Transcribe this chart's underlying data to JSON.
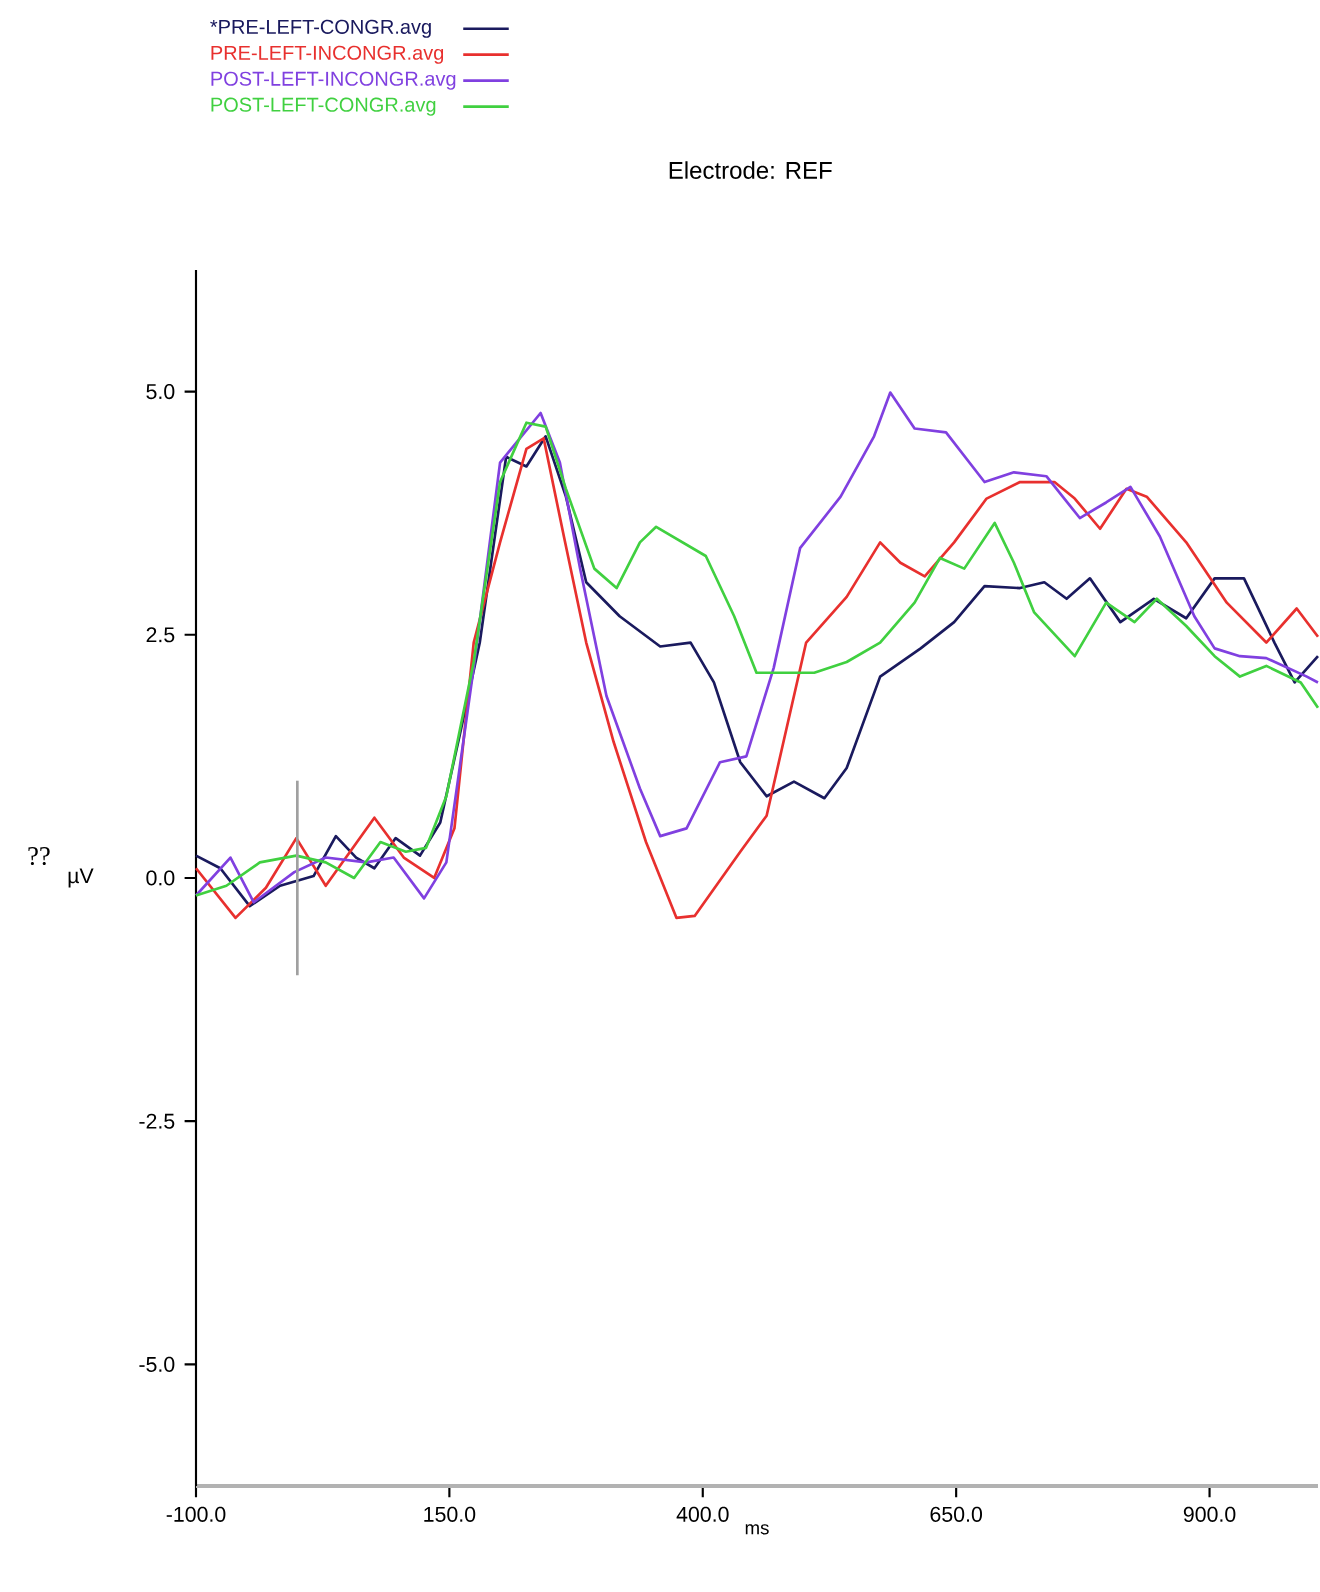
{
  "chart_data": {
    "type": "line",
    "title": "Electrode: REF",
    "xlabel": "ms",
    "ylabel": "µV",
    "annotations": [
      "??"
    ],
    "xlim": [
      -100,
      1007
    ],
    "ylim": [
      -6.25,
      6.25
    ],
    "xticks": [
      {
        "value": -100,
        "label": "-100.0"
      },
      {
        "value": 150,
        "label": "150.0"
      },
      {
        "value": 400,
        "label": "400.0"
      },
      {
        "value": 650,
        "label": "650.0"
      },
      {
        "value": 900,
        "label": "900.0"
      }
    ],
    "yticks": [
      {
        "value": 5,
        "label": "5.0"
      },
      {
        "value": 2.5,
        "label": "2.5"
      },
      {
        "value": 0,
        "label": "0.0"
      },
      {
        "value": -2.5,
        "label": "-2.5"
      },
      {
        "value": -5,
        "label": "-5.0"
      }
    ],
    "legend": "top left",
    "marker": "none",
    "line_style": "solid",
    "series": [
      {
        "name": "*PRE-LEFT-CONGR.avg",
        "color": "#1a1a5e",
        "x": [
          -100,
          -76,
          -47,
          -17,
          16,
          38,
          58,
          76,
          97,
          121,
          141,
          160,
          180,
          206,
          226,
          245,
          265,
          285,
          318,
          358,
          388,
          411,
          437,
          463,
          490,
          520,
          542,
          575,
          615,
          648,
          678,
          713,
          737,
          759,
          782,
          812,
          845,
          877,
          905,
          934,
          964,
          984,
          1007
        ],
        "values": [
          0.23,
          0.1,
          -0.29,
          -0.08,
          0.02,
          0.43,
          0.21,
          0.1,
          0.41,
          0.23,
          0.57,
          1.46,
          2.42,
          4.33,
          4.23,
          4.54,
          3.92,
          3.04,
          2.69,
          2.38,
          2.42,
          2.01,
          1.19,
          0.84,
          0.99,
          0.82,
          1.13,
          2.07,
          2.36,
          2.63,
          3.0,
          2.98,
          3.04,
          2.87,
          3.08,
          2.63,
          2.87,
          2.67,
          3.08,
          3.08,
          2.42,
          2.01,
          2.28
        ]
      },
      {
        "name": "PRE-LEFT-INCONGR.avg",
        "color": "#e8302e",
        "x": [
          -100,
          -61,
          -31,
          -1,
          28,
          76,
          105,
          135,
          155,
          174,
          200,
          226,
          243,
          263,
          285,
          312,
          344,
          374,
          392,
          437,
          463,
          502,
          542,
          575,
          595,
          619,
          648,
          680,
          713,
          747,
          767,
          792,
          818,
          838,
          877,
          917,
          956,
          986,
          1007
        ],
        "values": [
          0.1,
          -0.41,
          -0.1,
          0.41,
          -0.08,
          0.62,
          0.21,
          0.0,
          0.51,
          2.42,
          3.45,
          4.41,
          4.52,
          3.51,
          2.42,
          1.4,
          0.37,
          -0.41,
          -0.39,
          0.27,
          0.64,
          2.42,
          2.89,
          3.45,
          3.24,
          3.1,
          3.45,
          3.9,
          4.07,
          4.07,
          3.9,
          3.59,
          4.0,
          3.92,
          3.45,
          2.83,
          2.42,
          2.77,
          2.48
        ]
      },
      {
        "name": "POST-LEFT-INCONGR.avg",
        "color": "#8040e0",
        "x": [
          -100,
          -66,
          -43,
          -3,
          28,
          68,
          95,
          125,
          147,
          174,
          200,
          240,
          259,
          279,
          305,
          338,
          358,
          384,
          417,
          443,
          470,
          496,
          536,
          569,
          585,
          609,
          640,
          678,
          707,
          739,
          772,
          798,
          822,
          851,
          885,
          905,
          930,
          956,
          996,
          1007
        ],
        "values": [
          -0.18,
          0.21,
          -0.25,
          0.06,
          0.21,
          0.16,
          0.21,
          -0.21,
          0.16,
          2.16,
          4.27,
          4.78,
          4.27,
          3.18,
          1.87,
          0.92,
          0.43,
          0.51,
          1.19,
          1.25,
          2.16,
          3.39,
          3.92,
          4.54,
          4.99,
          4.62,
          4.58,
          4.07,
          4.17,
          4.13,
          3.7,
          3.86,
          4.02,
          3.51,
          2.69,
          2.36,
          2.28,
          2.26,
          2.07,
          2.01
        ]
      },
      {
        "name": "POST-LEFT-CONGR.avg",
        "color": "#40d040",
        "x": [
          -100,
          -70,
          -37,
          -1,
          28,
          56,
          82,
          107,
          127,
          147,
          174,
          200,
          226,
          245,
          265,
          293,
          315,
          338,
          354,
          403,
          431,
          453,
          510,
          542,
          575,
          609,
          634,
          658,
          688,
          707,
          727,
          767,
          798,
          826,
          848,
          877,
          905,
          930,
          956,
          990,
          1007
        ],
        "values": [
          -0.18,
          -0.08,
          0.16,
          0.23,
          0.16,
          0.0,
          0.37,
          0.27,
          0.31,
          0.84,
          2.22,
          4.07,
          4.68,
          4.64,
          4.0,
          3.18,
          2.98,
          3.45,
          3.61,
          3.31,
          2.69,
          2.11,
          2.11,
          2.22,
          2.42,
          2.83,
          3.29,
          3.18,
          3.65,
          3.24,
          2.73,
          2.28,
          2.83,
          2.63,
          2.87,
          2.59,
          2.28,
          2.07,
          2.18,
          2.01,
          1.75
        ]
      },
      {
        "type": "line",
        "color": "#a0a0a0",
        "x": [
          0,
          0
        ],
        "values": [
          -1,
          1
        ]
      }
    ]
  }
}
